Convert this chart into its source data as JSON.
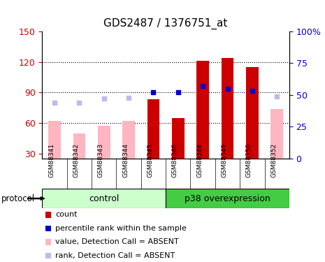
{
  "title": "GDS2487 / 1376751_at",
  "samples": [
    "GSM88341",
    "GSM88342",
    "GSM88343",
    "GSM88344",
    "GSM88345",
    "GSM88346",
    "GSM88348",
    "GSM88349",
    "GSM88350",
    "GSM88352"
  ],
  "control_label": "control",
  "overexp_label": "p38 overexpression",
  "protocol_label": "protocol",
  "n_control": 5,
  "n_overexp": 5,
  "ylim_left": [
    25,
    150
  ],
  "ylim_right": [
    0,
    100
  ],
  "yticks_left": [
    30,
    60,
    90,
    120,
    150
  ],
  "yticks_right": [
    0,
    25,
    50,
    75,
    100
  ],
  "bar_width": 0.5,
  "absent_bar_color": "#FFB6C1",
  "present_bar_color": "#CC0000",
  "absent_rank_color": "#BBBBEE",
  "present_rank_color": "#0000CC",
  "count_data": {
    "GSM88341": {
      "value": 62,
      "absent": true
    },
    "GSM88342": {
      "value": 50,
      "absent": true
    },
    "GSM88343": {
      "value": 57,
      "absent": true
    },
    "GSM88344": {
      "value": 62,
      "absent": true
    },
    "GSM88345": {
      "value": 83,
      "absent": false
    },
    "GSM88346": {
      "value": 65,
      "absent": false
    },
    "GSM88348": {
      "value": 121,
      "absent": false
    },
    "GSM88349": {
      "value": 124,
      "absent": false
    },
    "GSM88350": {
      "value": 115,
      "absent": false
    },
    "GSM88352": {
      "value": 74,
      "absent": true
    }
  },
  "rank_data": {
    "GSM88341": {
      "value": 44,
      "absent": true
    },
    "GSM88342": {
      "value": 44,
      "absent": true
    },
    "GSM88343": {
      "value": 47,
      "absent": true
    },
    "GSM88344": {
      "value": 48,
      "absent": true
    },
    "GSM88345": {
      "value": 52,
      "absent": false
    },
    "GSM88346": {
      "value": 52,
      "absent": false
    },
    "GSM88348": {
      "value": 57,
      "absent": false
    },
    "GSM88349": {
      "value": 55,
      "absent": false
    },
    "GSM88350": {
      "value": 53,
      "absent": false
    },
    "GSM88352": {
      "value": 49,
      "absent": true
    }
  },
  "bg_color": "#FFFFFF",
  "tick_label_color_left": "#CC0000",
  "tick_label_color_right": "#0000CC",
  "grid_color": "#000000",
  "control_bg": "#CCFFCC",
  "overexp_bg": "#44CC44",
  "xlabel_area_bg": "#CCCCCC",
  "legend_items": [
    {
      "label": "count",
      "color": "#CC0000"
    },
    {
      "label": "percentile rank within the sample",
      "color": "#0000CC"
    },
    {
      "label": "value, Detection Call = ABSENT",
      "color": "#FFB6C1"
    },
    {
      "label": "rank, Detection Call = ABSENT",
      "color": "#BBBBEE"
    }
  ]
}
